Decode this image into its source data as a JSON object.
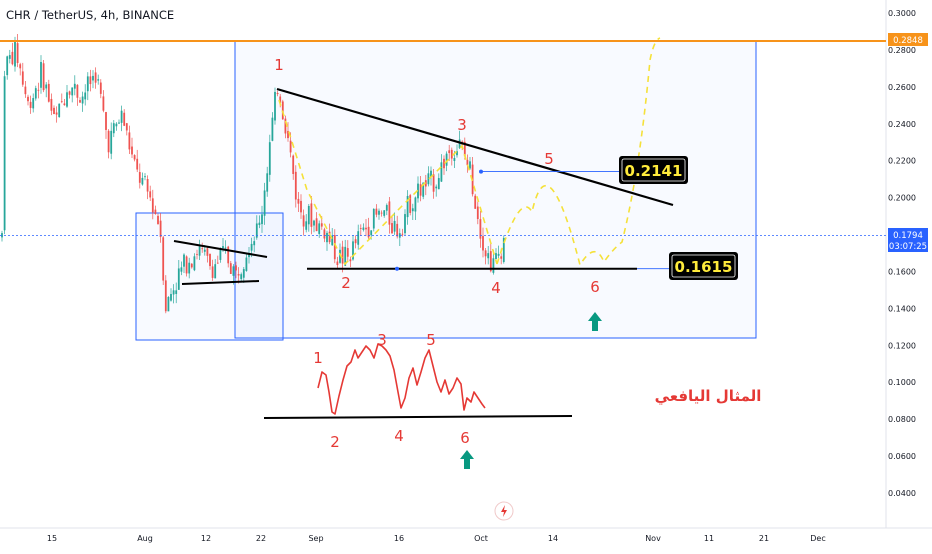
{
  "header": {
    "title": "CHR / TetherUS, 4h, BINANCE"
  },
  "chart_data": {
    "type": "candlestick",
    "symbol": "CHR / TetherUS",
    "interval": "4h",
    "exchange": "BINANCE",
    "y_ticks": [
      "0.3000",
      "0.2800",
      "0.2600",
      "0.2400",
      "0.2200",
      "0.2000",
      "0.1800",
      "0.1600",
      "0.1400",
      "0.1200",
      "0.1000",
      "0.0800",
      "0.0600",
      "0.0400"
    ],
    "x_ticks": [
      "15",
      "Aug",
      "12",
      "22",
      "Sep",
      "16",
      "Oct",
      "14",
      "Nov",
      "11",
      "21",
      "Dec"
    ],
    "ylim": [
      0.03,
      0.31
    ],
    "grid": false,
    "price_marker": {
      "value": 0.2848,
      "label": "0.2848",
      "color": "#f7931a"
    },
    "last_price": {
      "value": 0.1794,
      "label": "0.1794",
      "countdown": "03:07:25",
      "color": "#2962ff"
    },
    "levels": [
      {
        "label": "0.2141",
        "value": 0.2141
      },
      {
        "label": "0.1615",
        "value": 0.1615
      }
    ],
    "wave_labels_main": [
      "1",
      "2",
      "3",
      "4",
      "5",
      "6"
    ],
    "wave_labels_example": [
      "1",
      "2",
      "3",
      "4",
      "5",
      "6"
    ],
    "example_caption": "المثال اليافعي",
    "colors": {
      "up": "#26a69a",
      "down": "#ef5350",
      "wave_label": "#e53935",
      "projection": "#f5e13a",
      "box": "#2962ff",
      "arrow": "#089981",
      "trendline": "#000000"
    }
  }
}
